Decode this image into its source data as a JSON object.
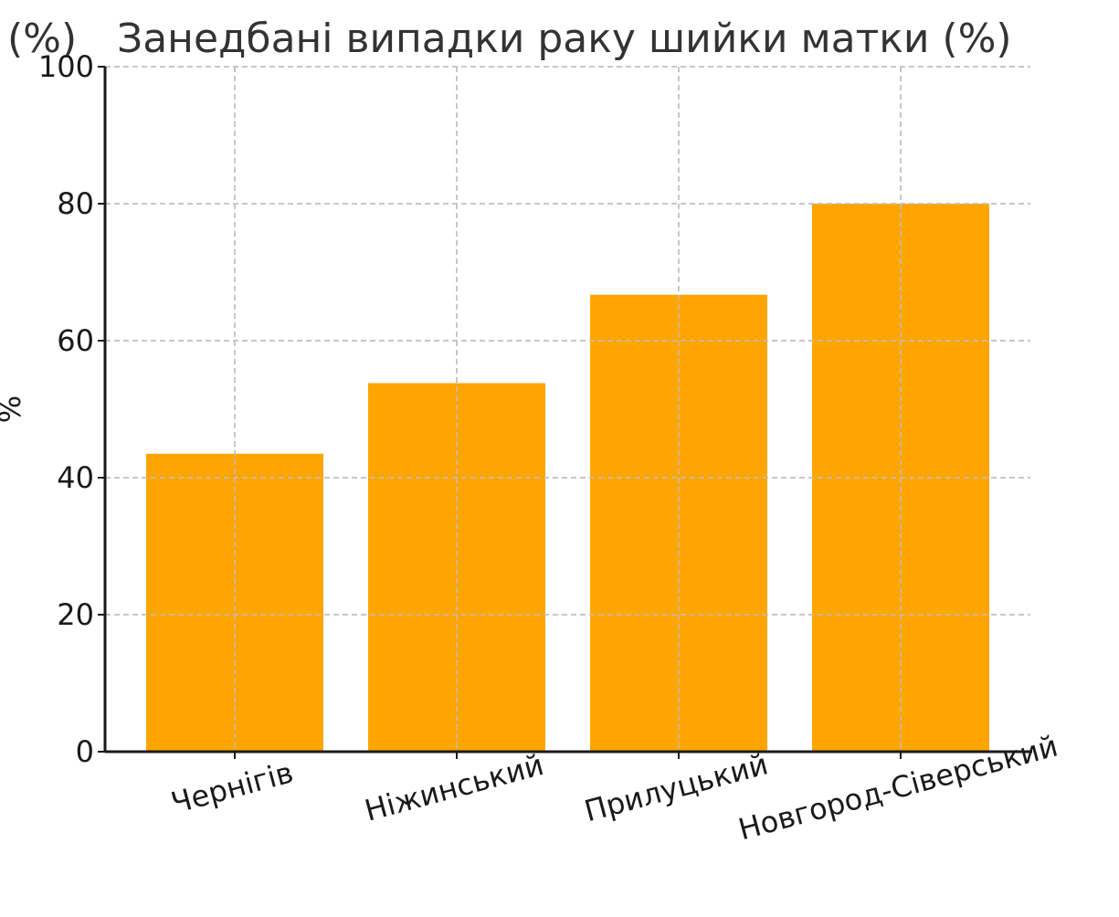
{
  "chart_data": {
    "type": "bar",
    "title": "Занедбані випадки раку шийки матки (%)",
    "clipped_title_fragment": "(%)",
    "ylabel": "%",
    "xlabel": "",
    "categories": [
      "Чернігів",
      "Ніжинський",
      "Прилуцький",
      "Новгород-Сіверський"
    ],
    "values": [
      43.5,
      53.8,
      66.7,
      80.0
    ],
    "ylim": [
      0,
      100
    ],
    "yticks": [
      0,
      20,
      40,
      60,
      80,
      100
    ],
    "grid": true,
    "bar_color": "#FFA500"
  }
}
